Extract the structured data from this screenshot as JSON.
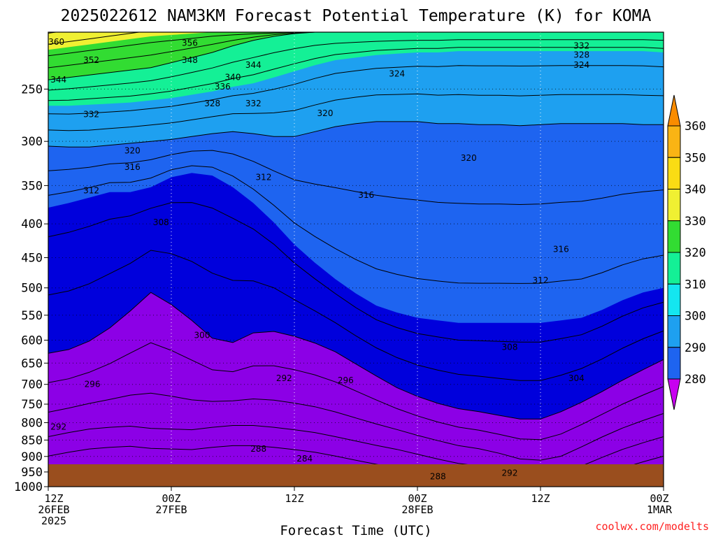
{
  "chart_data": {
    "type": "contour",
    "title": "2025022612 NAM3KM Forecast Potential Temperature (K) for KOMA",
    "xlabel": "Forecast Time (UTC)",
    "ylabel": "",
    "y_axis": {
      "scale": "log-pressure",
      "inverted": true,
      "ylim": [
        1000,
        205
      ],
      "ticks": [
        250,
        300,
        350,
        400,
        450,
        500,
        550,
        600,
        650,
        700,
        750,
        800,
        850,
        900,
        950,
        1000
      ]
    },
    "x_ticks": [
      {
        "hour": 0,
        "lines": [
          "12Z",
          "26FEB",
          "2025"
        ]
      },
      {
        "hour": 12,
        "lines": [
          "00Z",
          "27FEB"
        ]
      },
      {
        "hour": 24,
        "lines": [
          "12Z"
        ]
      },
      {
        "hour": 36,
        "lines": [
          "00Z",
          "28FEB"
        ]
      },
      {
        "hour": 48,
        "lines": [
          "12Z"
        ]
      },
      {
        "hour": 60,
        "lines": [
          "00Z",
          "1MAR"
        ]
      }
    ],
    "xlim": [
      0,
      60
    ],
    "colorbar": {
      "levels": [
        280,
        290,
        300,
        310,
        320,
        330,
        340,
        350,
        360
      ],
      "labels": [
        "280",
        "290",
        "300",
        "310",
        "320",
        "330",
        "340",
        "350",
        "360"
      ],
      "colors": [
        "#c800f0",
        "#8c00e6",
        "#5a00f0",
        "#0000dc",
        "#1e64f0",
        "#1ea0f0",
        "#14e6f0",
        "#14f096",
        "#32dc32",
        "#f0f032",
        "#fadc14",
        "#fab414",
        "#fa8c00"
      ]
    },
    "shading_boundaries": [
      {
        "theta": 290,
        "pressures": [
          812,
          800,
          790,
          785,
          782,
          788,
          790,
          792,
          785,
          780,
          780,
          785,
          792,
          800,
          812,
          825,
          838,
          850,
          865,
          880,
          895,
          905,
          920,
          940,
          945,
          935,
          905,
          875,
          850,
          830,
          812
        ]
      },
      {
        "theta": 300,
        "pressures": [
          628,
          620,
          602,
          575,
          542,
          508,
          530,
          560,
          596,
          605,
          585,
          582,
          592,
          606,
          625,
          652,
          680,
          708,
          730,
          748,
          762,
          770,
          780,
          790,
          790,
          770,
          745,
          718,
          690,
          665,
          642
        ]
      },
      {
        "theta": 310,
        "pressures": [
          378,
          372,
          365,
          358,
          358,
          352,
          340,
          335,
          338,
          352,
          372,
          398,
          430,
          458,
          485,
          510,
          532,
          545,
          555,
          560,
          565,
          565,
          565,
          565,
          565,
          560,
          555,
          540,
          522,
          508,
          500
        ]
      },
      {
        "theta": 320,
        "pressures": [
          305,
          306,
          306,
          304,
          302,
          300,
          298,
          295,
          292,
          290,
          292,
          295,
          295,
          290,
          285,
          282,
          280,
          280,
          280,
          282,
          282,
          283,
          283,
          284,
          283,
          282,
          282,
          282,
          282,
          283,
          283
        ]
      },
      {
        "theta": 330,
        "pressures": [
          265,
          265,
          264,
          263,
          262,
          260,
          258,
          255,
          252,
          248,
          245,
          240,
          235,
          230,
          226,
          224,
          222,
          221,
          220,
          220,
          219,
          219,
          219,
          219,
          219,
          219,
          219,
          219,
          219,
          219,
          220
        ]
      },
      {
        "theta": 340,
        "pressures": [
          242,
          240,
          238,
          236,
          234,
          232,
          228,
          224,
          220,
          215,
          211,
          208,
          206,
          205,
          205,
          205,
          205,
          205,
          205,
          205,
          205,
          205,
          205,
          205,
          205,
          205,
          205,
          205,
          205,
          205,
          205
        ]
      },
      {
        "theta": 350,
        "pressures": [
          218,
          216,
          214,
          212,
          210,
          208,
          207,
          206,
          205,
          205,
          205,
          205,
          205,
          205,
          205,
          205,
          205,
          205,
          205,
          205,
          205,
          205,
          205,
          205,
          205,
          205,
          205,
          205,
          205,
          205,
          205
        ]
      }
    ],
    "contour_labels": [
      {
        "text": "360",
        "hour": 0.8,
        "p": 212
      },
      {
        "text": "356",
        "hour": 13.8,
        "p": 213
      },
      {
        "text": "352",
        "hour": 4.2,
        "p": 226
      },
      {
        "text": "348",
        "hour": 13.8,
        "p": 226
      },
      {
        "text": "344",
        "hour": 1.0,
        "p": 242
      },
      {
        "text": "344",
        "hour": 20.0,
        "p": 230
      },
      {
        "text": "340",
        "hour": 18.0,
        "p": 240
      },
      {
        "text": "336",
        "hour": 17.0,
        "p": 248
      },
      {
        "text": "332",
        "hour": 4.2,
        "p": 273
      },
      {
        "text": "332",
        "hour": 20.0,
        "p": 263
      },
      {
        "text": "328",
        "hour": 16.0,
        "p": 263
      },
      {
        "text": "324",
        "hour": 34.0,
        "p": 237
      },
      {
        "text": "332",
        "hour": 52.0,
        "p": 215
      },
      {
        "text": "328",
        "hour": 52.0,
        "p": 222
      },
      {
        "text": "324",
        "hour": 52.0,
        "p": 230
      },
      {
        "text": "320",
        "hour": 27.0,
        "p": 272
      },
      {
        "text": "320",
        "hour": 8.2,
        "p": 310
      },
      {
        "text": "316",
        "hour": 8.2,
        "p": 328
      },
      {
        "text": "312",
        "hour": 4.2,
        "p": 356
      },
      {
        "text": "312",
        "hour": 21.0,
        "p": 340
      },
      {
        "text": "316",
        "hour": 31.0,
        "p": 362
      },
      {
        "text": "320",
        "hour": 41.0,
        "p": 318
      },
      {
        "text": "308",
        "hour": 11.0,
        "p": 398
      },
      {
        "text": "316",
        "hour": 50.0,
        "p": 437
      },
      {
        "text": "312",
        "hour": 48.0,
        "p": 487
      },
      {
        "text": "300",
        "hour": 15.0,
        "p": 590
      },
      {
        "text": "308",
        "hour": 45.0,
        "p": 615
      },
      {
        "text": "304",
        "hour": 51.5,
        "p": 685
      },
      {
        "text": "296",
        "hour": 4.3,
        "p": 700
      },
      {
        "text": "292",
        "hour": 23.0,
        "p": 685
      },
      {
        "text": "296",
        "hour": 29.0,
        "p": 690
      },
      {
        "text": "292",
        "hour": 1.0,
        "p": 812
      },
      {
        "text": "288",
        "hour": 20.5,
        "p": 877
      },
      {
        "text": "284",
        "hour": 25.0,
        "p": 907
      },
      {
        "text": "288",
        "hour": 38.0,
        "p": 965
      },
      {
        "text": "292",
        "hour": 45.0,
        "p": 953
      }
    ]
  },
  "credit": "coolwx.com/modelts"
}
